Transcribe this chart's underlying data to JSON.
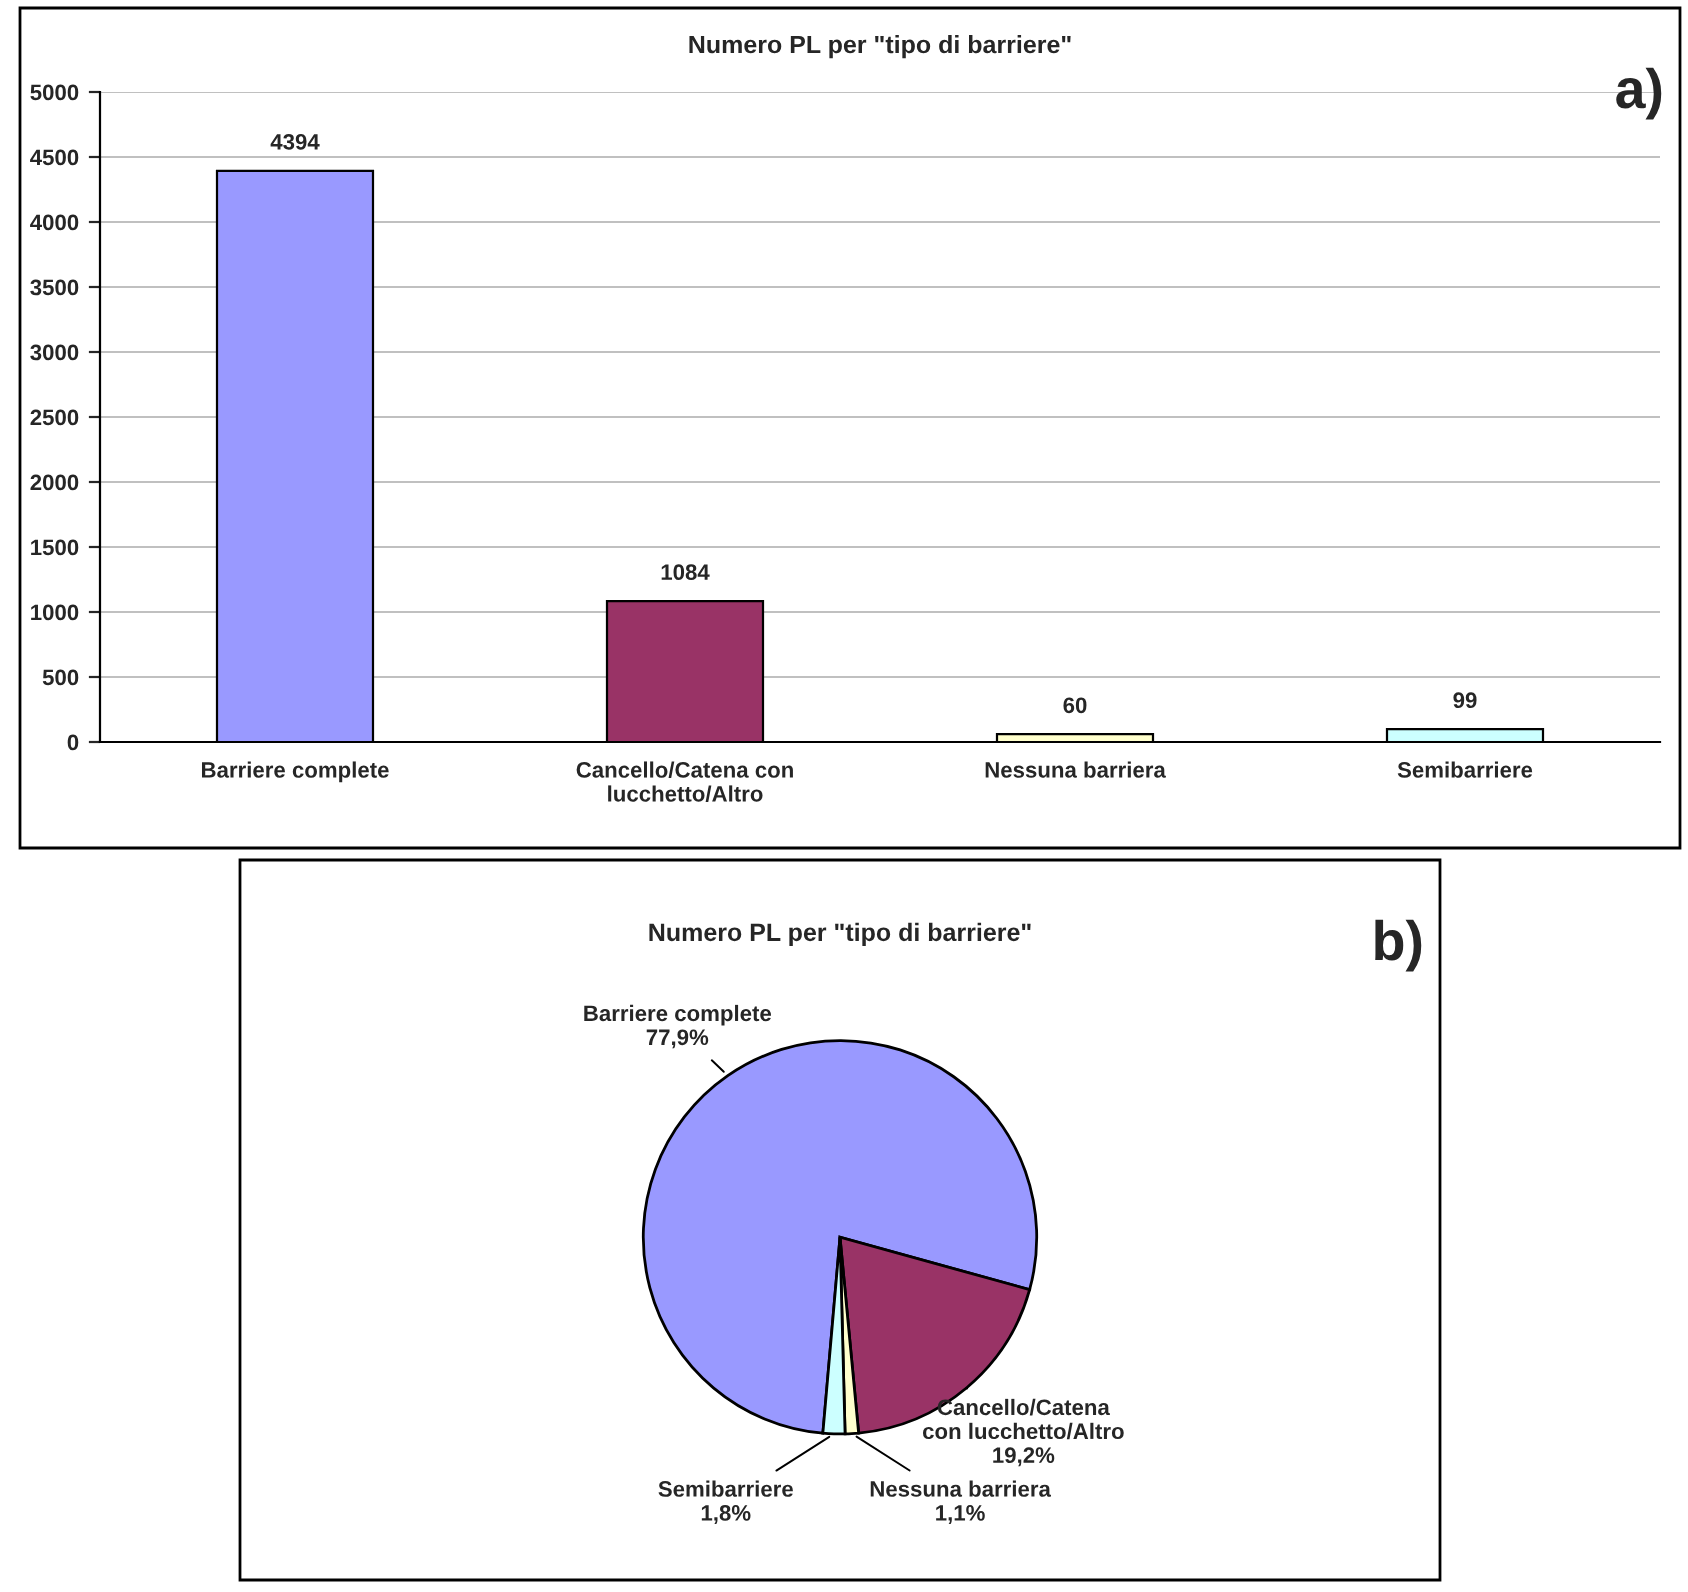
{
  "chart_data": [
    {
      "type": "bar",
      "title": "Numero PL per \"tipo di barriere\"",
      "categories": [
        "Barriere complete",
        "Cancello/Catena con\nlucchetto/Altro",
        "Nessuna barriera",
        "Semibarriere"
      ],
      "values": [
        4394,
        1084,
        60,
        99
      ],
      "colors": [
        "#9999ff",
        "#993366",
        "#ffffcc",
        "#ccffff"
      ],
      "ylim": [
        0,
        5000
      ],
      "yticks": [
        0,
        500,
        1000,
        1500,
        2000,
        2500,
        3000,
        3500,
        4000,
        4500,
        5000
      ],
      "grid": "y",
      "data_labels": true,
      "annotations": [
        "a)"
      ]
    },
    {
      "type": "pie",
      "title": "Numero PL per \"tipo di barriere\"",
      "categories": [
        "Barriere complete",
        "Cancello/Catena\ncon lucchetto/Altro",
        "Nessuna barriera",
        "Semibarriere"
      ],
      "values": [
        77.9,
        19.2,
        1.1,
        1.8
      ],
      "value_labels": [
        "77,9%",
        "19,2%",
        "1,1%",
        "1,8%"
      ],
      "colors": [
        "#9999ff",
        "#993366",
        "#ffffcc",
        "#ccffff"
      ],
      "annotations": [
        "b)"
      ]
    }
  ]
}
